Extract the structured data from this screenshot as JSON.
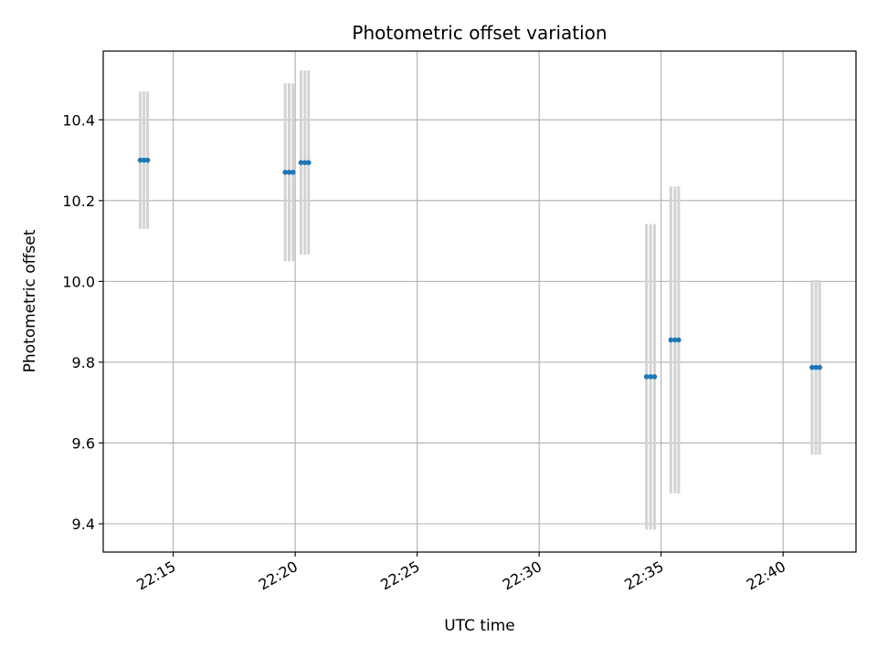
{
  "chart_data": {
    "type": "scatter",
    "title": "Photometric offset variation",
    "xlabel": "UTC time",
    "ylabel": "Photometric offset",
    "grid": true,
    "x_tick_labels": [
      "22:15",
      "22:20",
      "22:25",
      "22:30",
      "22:35",
      "22:40"
    ],
    "y_tick_labels": [
      "9.4",
      "9.6",
      "9.8",
      "10.0",
      "10.2",
      "10.4"
    ],
    "x_ticks_minutes": [
      15,
      20,
      25,
      30,
      35,
      40
    ],
    "y_ticks": [
      9.4,
      9.6,
      9.8,
      10.0,
      10.2,
      10.4
    ],
    "xlim_minutes": [
      12.13,
      42.99
    ],
    "ylim": [
      9.33,
      10.57
    ],
    "series": [
      {
        "marker_color": "#1f77b4",
        "errorbar_color": "#d3d3d3",
        "points": [
          {
            "time": "22:13:39",
            "t": 13.65,
            "y": 10.3,
            "err": 0.17
          },
          {
            "time": "22:13:48",
            "t": 13.8,
            "y": 10.3,
            "err": 0.17
          },
          {
            "time": "22:13:57",
            "t": 13.95,
            "y": 10.3,
            "err": 0.17
          },
          {
            "time": "22:19:35",
            "t": 19.59,
            "y": 10.27,
            "err": 0.22
          },
          {
            "time": "22:19:45",
            "t": 19.75,
            "y": 10.27,
            "err": 0.22
          },
          {
            "time": "22:19:55",
            "t": 19.91,
            "y": 10.27,
            "err": 0.22
          },
          {
            "time": "22:20:14",
            "t": 20.24,
            "y": 10.294,
            "err": 0.228
          },
          {
            "time": "22:20:24",
            "t": 20.4,
            "y": 10.294,
            "err": 0.228
          },
          {
            "time": "22:20:33",
            "t": 20.55,
            "y": 10.294,
            "err": 0.228
          },
          {
            "time": "22:34:24",
            "t": 34.4,
            "y": 9.764,
            "err": 0.378
          },
          {
            "time": "22:34:34",
            "t": 34.57,
            "y": 9.764,
            "err": 0.378
          },
          {
            "time": "22:34:44",
            "t": 34.73,
            "y": 9.764,
            "err": 0.378
          },
          {
            "time": "22:35:24",
            "t": 35.4,
            "y": 9.855,
            "err": 0.38
          },
          {
            "time": "22:35:34",
            "t": 35.57,
            "y": 9.855,
            "err": 0.38
          },
          {
            "time": "22:35:43",
            "t": 35.72,
            "y": 9.855,
            "err": 0.38
          },
          {
            "time": "22:41:11",
            "t": 41.19,
            "y": 9.787,
            "err": 0.216
          },
          {
            "time": "22:41:21",
            "t": 41.35,
            "y": 9.787,
            "err": 0.216
          },
          {
            "time": "22:41:30",
            "t": 41.5,
            "y": 9.787,
            "err": 0.216
          }
        ]
      }
    ]
  }
}
